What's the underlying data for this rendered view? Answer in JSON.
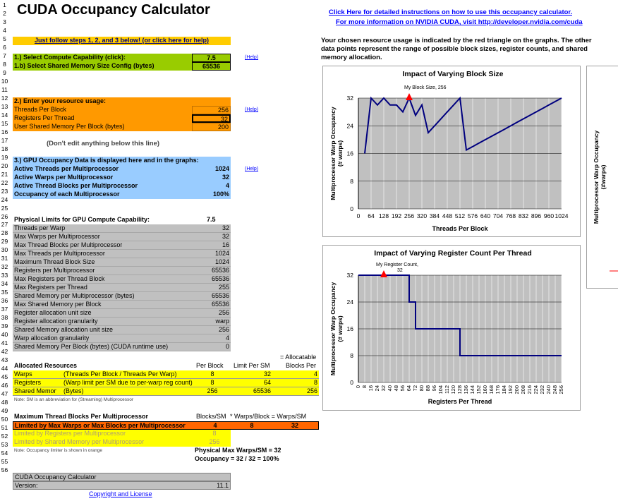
{
  "title": "CUDA Occupancy Calculator",
  "instructions_link": "Click Here for detailed instructions on how to use this occupancy calculator.",
  "nvidia_link": "For more information on NVIDIA CUDA, visit http://developer.nvidia.com/cuda",
  "description": [
    "Your chosen resource usage is indicated by the red triangle on the graphs.  The other",
    "data points represent the range of possible block sizes, register counts, and shared",
    "memory allocation."
  ],
  "steps_banner": "Just follow steps 1, 2, and 3 below! (or click here for help)",
  "help_label": "(Help)",
  "step1": {
    "label": "1.) Select Compute Capability (click):",
    "value": "7.5",
    "config_label": "1.b) Select Shared Memory Size Config (bytes)",
    "config_value": "65536"
  },
  "step2": {
    "header": "2.) Enter your resource usage:",
    "rows": [
      {
        "label": "Threads Per Block",
        "value": "256"
      },
      {
        "label": "Registers Per Thread",
        "value": "32"
      },
      {
        "label": "User Shared Memory Per Block (bytes)",
        "value": "200"
      }
    ]
  },
  "dont_edit": "(Don't edit anything below this line)",
  "step3": {
    "header": "3.) GPU Occupancy Data is displayed here and in the graphs:",
    "rows": [
      {
        "label": "Active Threads per Multiprocessor",
        "value": "1024"
      },
      {
        "label": "Active Warps per Multiprocessor",
        "value": "32"
      },
      {
        "label": "Active Thread Blocks per Multiprocessor",
        "value": "4"
      },
      {
        "label": "Occupancy of each Multiprocessor",
        "value": "100%"
      }
    ]
  },
  "physical": {
    "header": "Physical Limits for GPU Compute Capability:",
    "value": "7.5",
    "rows": [
      {
        "label": "Threads per Warp",
        "value": "32"
      },
      {
        "label": "Max Warps per Multiprocessor",
        "value": "32"
      },
      {
        "label": "Max Thread Blocks per Multiprocessor",
        "value": "16"
      },
      {
        "label": "Max Threads per Multiprocessor",
        "value": "1024"
      },
      {
        "label": "Maximum Thread Block Size",
        "value": "1024"
      },
      {
        "label": "Registers per Multiprocessor",
        "value": "65536"
      },
      {
        "label": "Max Registers per Thread Block",
        "value": "65536"
      },
      {
        "label": "Max Registers per Thread",
        "value": "255"
      },
      {
        "label": "Shared Memory per Multiprocessor (bytes)",
        "value": "65536"
      },
      {
        "label": "Max Shared Memory per Block",
        "value": "65536"
      },
      {
        "label": "Register allocation unit size",
        "value": "256"
      },
      {
        "label": "Register allocation granularity",
        "value": "warp"
      },
      {
        "label": "Shared Memory allocation unit size",
        "value": "256"
      },
      {
        "label": "Warp allocation granularity",
        "value": "4"
      },
      {
        "label": "Shared Memory Per Block (bytes) (CUDA runtime use)",
        "value": "0"
      }
    ]
  },
  "allocated": {
    "allocatable_note": "= Allocatable",
    "header": "Allocated Resources",
    "col_per_block": "Per Block",
    "col_limit": "Limit Per SM",
    "col_blocks": "Blocks Per",
    "rows": [
      {
        "label": "Warps",
        "desc": "(Threads Per Block / Threads Per Warp)",
        "per_block": "8",
        "limit": "32",
        "blocks": "4"
      },
      {
        "label": "Registers",
        "desc": "(Warp limit per SM due to per-warp reg count)",
        "per_block": "8",
        "limit": "64",
        "blocks": "8"
      },
      {
        "label": "Shared Memory",
        "desc": "(Bytes)",
        "per_block": "256",
        "limit": "65536",
        "blocks": "256"
      }
    ],
    "note": "Note: SM is an abbreviation for (Streaming) Multiprocessor"
  },
  "max_blocks": {
    "header": "Maximum Thread Blocks Per Multiprocessor",
    "col_blocks": "Blocks/SM",
    "col_mid": "* Warps/Block = Warps/SM",
    "rows": [
      {
        "label": "Limited by Max Warps or Max Blocks per Multiprocessor",
        "blocks": "4",
        "warps": "8",
        "warps_sm": "32"
      },
      {
        "label": "Limited by Registers per Multiprocessor",
        "blocks": "8"
      },
      {
        "label": "Limited by Shared Memory per Multiprocessor",
        "blocks": "256"
      }
    ],
    "note": "Note: Occupancy limiter is shown in orange",
    "physical_max": "Physical Max Warps/SM = 32",
    "occupancy": "Occupancy = 32 / 32 = 100%"
  },
  "footer": {
    "name": "CUDA Occupancy Calculator",
    "version_label": "Version:",
    "version": "11.1",
    "copyright": "Copyright and License"
  },
  "chart_data": [
    {
      "type": "line",
      "title": "Impact of Varying Block Size",
      "xlabel": "Threads Per Block",
      "ylabel": "Multiprocessor Warp Occupancy (# warps)",
      "annotation": "My Block Size, 256",
      "marker": {
        "x": 256,
        "y": 32
      },
      "xlim": [
        0,
        1024
      ],
      "ylim": [
        0,
        32
      ],
      "xticks": [
        "0",
        "64",
        "128",
        "192",
        "256",
        "320",
        "384",
        "448",
        "512",
        "576",
        "640",
        "704",
        "768",
        "832",
        "896",
        "960",
        "1024"
      ],
      "yticks": [
        "0",
        "8",
        "16",
        "24",
        "32"
      ],
      "x": [
        32,
        64,
        96,
        128,
        160,
        192,
        224,
        256,
        288,
        320,
        352,
        384,
        416,
        448,
        480,
        512,
        544,
        576,
        608,
        640,
        672,
        704,
        736,
        768,
        800,
        832,
        864,
        896,
        928,
        960,
        992,
        1024
      ],
      "values": [
        16,
        32,
        30,
        32,
        30,
        30,
        28,
        32,
        27,
        30,
        22,
        24,
        26,
        28,
        30,
        32,
        17,
        18,
        19,
        20,
        21,
        22,
        23,
        24,
        25,
        26,
        27,
        28,
        29,
        30,
        31,
        32
      ]
    },
    {
      "type": "line",
      "title": "Impact of Varying Register Count Per Thread",
      "xlabel": "Registers Per Thread",
      "ylabel": "Multiprocessor Warp Occupancy (# warps)",
      "annotation": "My Register Count,",
      "annotation_value": "32",
      "marker": {
        "x": 32,
        "y": 32
      },
      "xlim": [
        0,
        256
      ],
      "ylim": [
        0,
        32
      ],
      "yticks": [
        "0",
        "8",
        "16",
        "24",
        "32"
      ],
      "xticks": [
        "0",
        "8",
        "16",
        "24",
        "32",
        "40",
        "48",
        "56",
        "64",
        "72",
        "80",
        "88",
        "96",
        "104",
        "112",
        "120",
        "128",
        "136",
        "144",
        "152",
        "160",
        "168",
        "176",
        "184",
        "192",
        "200",
        "208",
        "216",
        "224",
        "232",
        "240",
        "248",
        "256"
      ],
      "x": [
        0,
        64,
        64,
        72,
        72,
        128,
        128,
        256
      ],
      "values": [
        32,
        32,
        24,
        24,
        16,
        16,
        8,
        8
      ]
    },
    {
      "type": "line",
      "title": "",
      "ylabel": "Multiprocessor Warp Occupancy (#warps)"
    }
  ],
  "colors": {
    "green": "#99cc00",
    "orange": "#ff9900",
    "blue": "#99ccff",
    "gray": "#c0c0c0",
    "yellow": "#ffff00",
    "limiter": "#ff6600",
    "line": "#00007f",
    "marker": "#ff0000"
  }
}
